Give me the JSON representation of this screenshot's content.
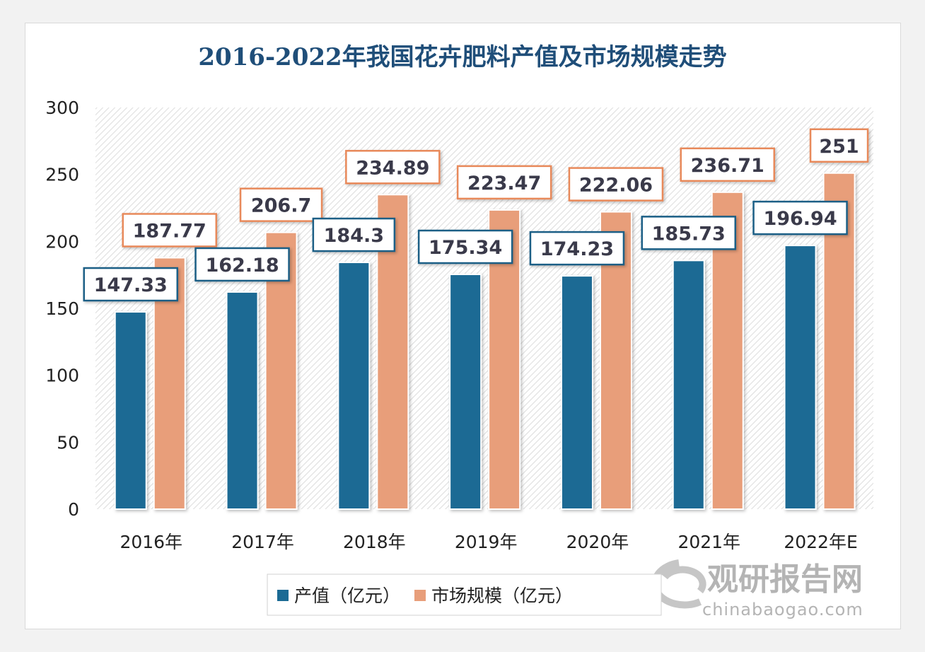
{
  "chart_data": {
    "type": "bar",
    "title": "2016-2022年我国花卉肥料产值及市场规模走势",
    "categories": [
      "2016年",
      "2017年",
      "2018年",
      "2019年",
      "2020年",
      "2021年",
      "2022年E"
    ],
    "series": [
      {
        "name": "产值（亿元）",
        "color": "#1b6a94",
        "values": [
          147.33,
          162.18,
          184.3,
          175.34,
          174.23,
          185.73,
          196.94
        ]
      },
      {
        "name": "市场规模（亿元）",
        "color": "#e89e7a",
        "values": [
          187.77,
          206.7,
          234.89,
          223.47,
          222.06,
          236.71,
          251
        ]
      }
    ],
    "yticks": [
      0,
      50,
      100,
      150,
      200,
      250,
      300
    ],
    "ylim": [
      0,
      300
    ],
    "grid": false,
    "background": "diagonal-hatch",
    "legend": "bottom",
    "xlabel": "",
    "ylabel": ""
  },
  "watermark": {
    "name": "观研报告网",
    "url_text": "chinabaogao.com"
  }
}
